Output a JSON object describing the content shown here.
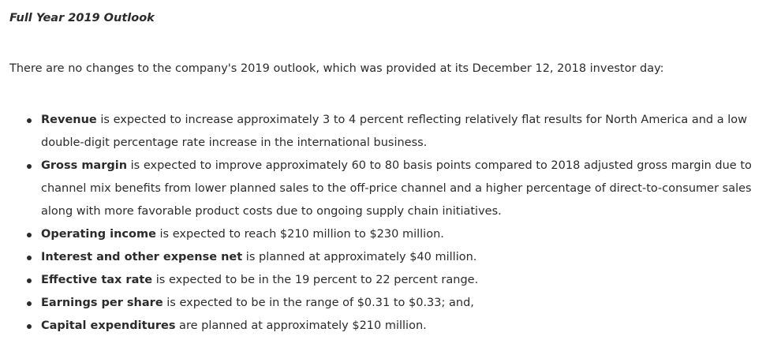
{
  "heading": "Full Year 2019 Outlook",
  "intro": "There are no changes to the company's 2019 outlook, which was provided at its December 12, 2018 investor day:",
  "items": [
    {
      "term": "Revenue",
      "text": " is expected to increase approximately 3 to 4 percent reflecting relatively flat results for North America and a low double-digit percentage rate increase in the international business."
    },
    {
      "term": "Gross margin",
      "text": " is expected to improve approximately 60 to 80 basis points compared to 2018 adjusted gross margin due to channel mix benefits from lower planned sales to the off-price channel and a higher percentage of direct-to-consumer sales along with more favorable product costs due to ongoing supply chain initiatives."
    },
    {
      "term": "Operating income",
      "text": " is expected to reach $210 million to $230 million."
    },
    {
      "term": "Interest and other expense net",
      "text": " is planned at approximately $40 million."
    },
    {
      "term": "Effective tax rate",
      "text": " is expected to be in the 19 percent to 22 percent range."
    },
    {
      "term": "Earnings per share",
      "text": " is expected to be in the range of $0.31 to $0.33; and,"
    },
    {
      "term": "Capital expenditures",
      "text": " are planned at approximately $210 million."
    }
  ]
}
